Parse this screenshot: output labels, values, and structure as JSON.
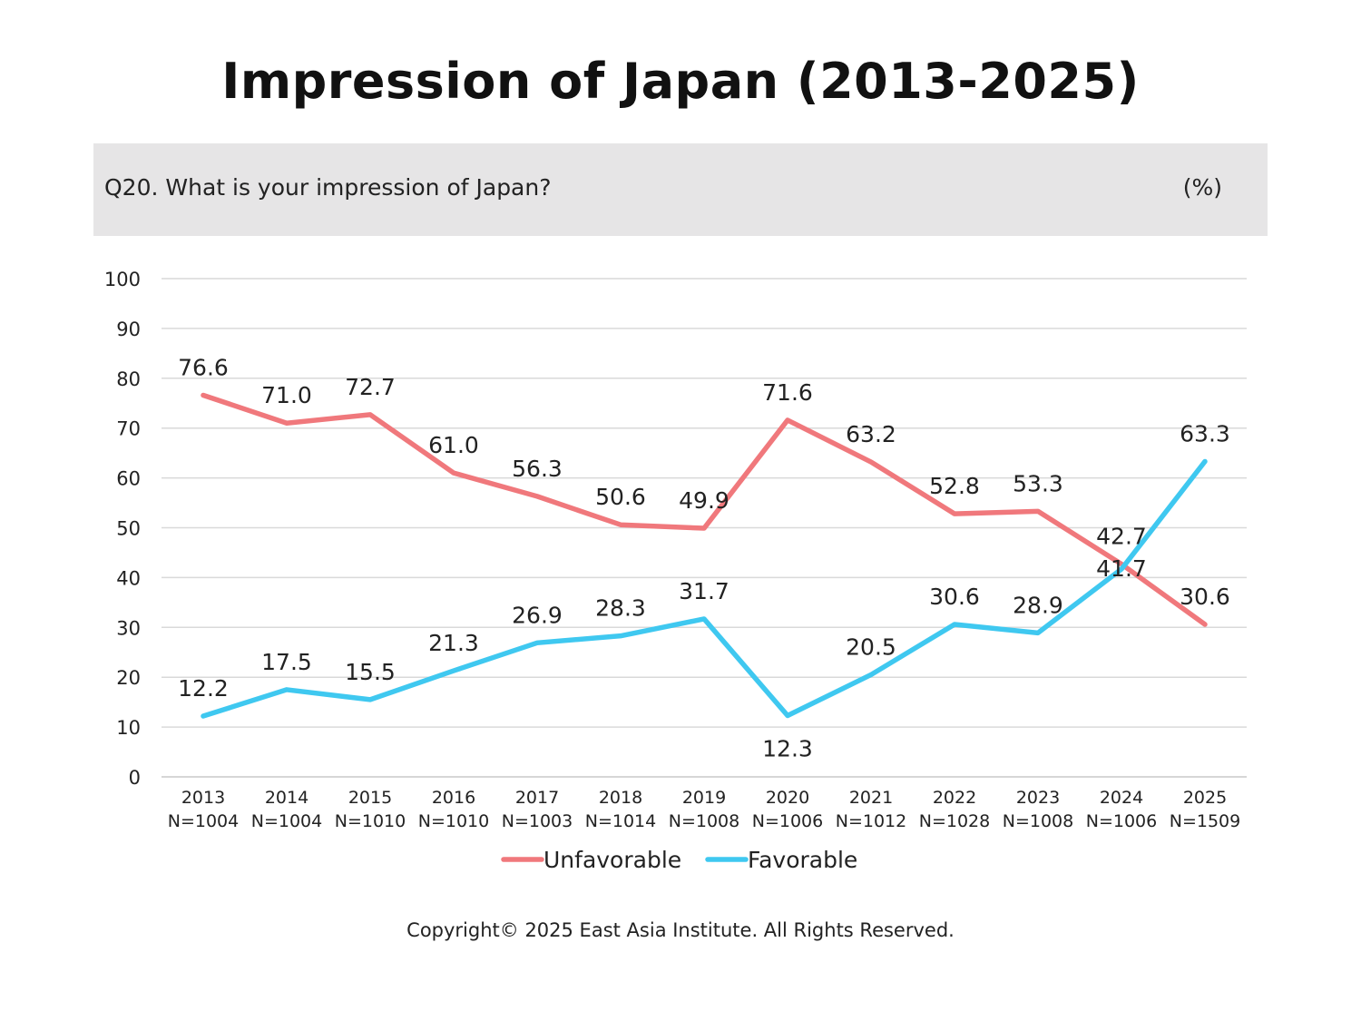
{
  "title": "Impression of Japan (2013-2025)",
  "question": "Q20. What is your impression of Japan?",
  "unit": "(%)",
  "copyright": "Copyright© 2025 East Asia Institute. All Rights Reserved.",
  "chart_data": {
    "type": "line",
    "categories": [
      "2013",
      "2014",
      "2015",
      "2016",
      "2017",
      "2018",
      "2019",
      "2020",
      "2021",
      "2022",
      "2023",
      "2024",
      "2025"
    ],
    "sample_sizes": [
      "N=1004",
      "N=1004",
      "N=1010",
      "N=1010",
      "N=1003",
      "N=1014",
      "N=1008",
      "N=1006",
      "N=1012",
      "N=1028",
      "N=1008",
      "N=1006",
      "N=1509"
    ],
    "series": [
      {
        "name": "Unfavorable",
        "color": "#f0787c",
        "values": [
          76.6,
          71.0,
          72.7,
          61.0,
          56.3,
          50.6,
          49.9,
          71.6,
          63.2,
          52.8,
          53.3,
          42.7,
          30.6
        ],
        "labels": [
          "76.6",
          "71.0",
          "72.7",
          "61.0",
          "56.3",
          "50.6",
          "49.9",
          "71.6",
          "63.2",
          "52.8",
          "53.3",
          "42.7",
          "30.6"
        ]
      },
      {
        "name": "Favorable",
        "color": "#3fc8f0",
        "values": [
          12.2,
          17.5,
          15.5,
          21.3,
          26.9,
          28.3,
          31.7,
          12.3,
          20.5,
          30.6,
          28.9,
          41.7,
          63.3
        ],
        "labels": [
          "12.2",
          "17.5",
          "15.5",
          "21.3",
          "26.9",
          "28.3",
          "31.7",
          "12.3",
          "20.5",
          "30.6",
          "28.9",
          "41.7",
          "63.3"
        ]
      }
    ],
    "y_ticks": [
      "0",
      "10",
      "20",
      "30",
      "40",
      "50",
      "60",
      "70",
      "80",
      "90",
      "100"
    ],
    "ylim": [
      0,
      100
    ],
    "grid": true,
    "legend": "bottom-center"
  }
}
